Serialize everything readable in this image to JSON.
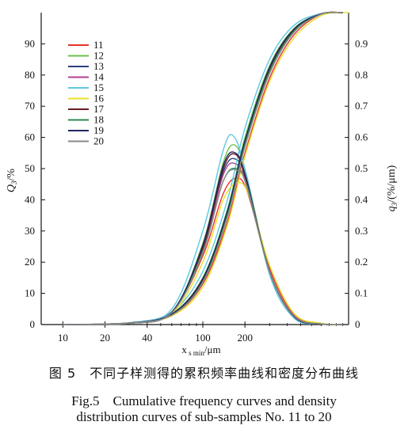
{
  "chart_data": {
    "type": "line",
    "x_scale": "log",
    "xlim": [
      7,
      1100
    ],
    "ylim_left": [
      0,
      100
    ],
    "ylim_right": [
      0,
      1.0
    ],
    "x_tick_labels": [
      "10",
      "20",
      "40",
      "100",
      "200"
    ],
    "x_tick_values": [
      10,
      20,
      40,
      100,
      200
    ],
    "y_left_tick_labels": [
      "0",
      "10",
      "20",
      "30",
      "40",
      "50",
      "60",
      "70",
      "80",
      "90"
    ],
    "y_right_tick_labels": [
      "0",
      "0.1",
      "0.2",
      "0.3",
      "0.4",
      "0.5",
      "0.6",
      "0.7",
      "0.8",
      "0.9"
    ],
    "xlabel": "x",
    "xlabel_sub": "s min",
    "xlabel_unit": "/μm",
    "ylabel_left": "Q",
    "ylabel_left_sub": "3",
    "ylabel_left_unit": "/%",
    "ylabel_right": "q",
    "ylabel_right_sub": "3",
    "ylabel_right_unit": "/(%/μm)",
    "legend_position": "top-left",
    "grid": false,
    "series": [
      {
        "name": "11",
        "color": "#e8322a",
        "cumulative": {
          "x": [
            10,
            30,
            60,
            100,
            150,
            200,
            300,
            450,
            700,
            1000
          ],
          "y": [
            0,
            0.5,
            3,
            13,
            33,
            55,
            79,
            93,
            99.5,
            100
          ]
        },
        "density": {
          "x": [
            10,
            30,
            60,
            100,
            140,
            175,
            210,
            300,
            450,
            700,
            1000
          ],
          "y": [
            0,
            0.004,
            0.04,
            0.22,
            0.42,
            0.47,
            0.42,
            0.18,
            0.03,
            0.003,
            0
          ]
        }
      },
      {
        "name": "12",
        "color": "#6cc04a",
        "cumulative": {
          "x": [
            10,
            30,
            60,
            100,
            150,
            200,
            300,
            450,
            700,
            1000
          ],
          "y": [
            0,
            0.5,
            3.5,
            15,
            37,
            60,
            83,
            95,
            99.6,
            100
          ]
        },
        "density": {
          "x": [
            10,
            30,
            60,
            100,
            140,
            170,
            205,
            300,
            450,
            700,
            1000
          ],
          "y": [
            0,
            0.004,
            0.04,
            0.26,
            0.52,
            0.575,
            0.48,
            0.17,
            0.025,
            0.002,
            0
          ]
        }
      },
      {
        "name": "13",
        "color": "#2d3f7a",
        "cumulative": {
          "x": [
            10,
            30,
            60,
            100,
            150,
            200,
            300,
            450,
            700,
            1000
          ],
          "y": [
            0,
            0.5,
            3.3,
            14.5,
            36,
            58.5,
            82,
            94.5,
            99.6,
            100
          ]
        },
        "density": {
          "x": [
            10,
            30,
            60,
            100,
            140,
            172,
            205,
            300,
            450,
            700,
            1000
          ],
          "y": [
            0,
            0.004,
            0.04,
            0.25,
            0.49,
            0.53,
            0.46,
            0.17,
            0.025,
            0.002,
            0
          ]
        }
      },
      {
        "name": "14",
        "color": "#b0408f",
        "cumulative": {
          "x": [
            10,
            30,
            60,
            100,
            150,
            200,
            300,
            450,
            700,
            1000
          ],
          "y": [
            0,
            0.5,
            3.2,
            14,
            35.5,
            58,
            81.5,
            94.3,
            99.6,
            100
          ]
        },
        "density": {
          "x": [
            10,
            30,
            60,
            100,
            140,
            172,
            205,
            300,
            450,
            700,
            1000
          ],
          "y": [
            0,
            0.004,
            0.04,
            0.24,
            0.48,
            0.515,
            0.45,
            0.17,
            0.025,
            0.002,
            0
          ]
        }
      },
      {
        "name": "15",
        "color": "#5ec8e0",
        "cumulative": {
          "x": [
            10,
            30,
            60,
            100,
            150,
            200,
            300,
            450,
            700,
            1000
          ],
          "y": [
            0,
            0.6,
            4,
            17,
            40,
            63,
            85,
            96,
            99.7,
            100
          ]
        },
        "density": {
          "x": [
            10,
            30,
            60,
            100,
            140,
            165,
            200,
            300,
            450,
            700,
            1000
          ],
          "y": [
            0,
            0.005,
            0.05,
            0.3,
            0.56,
            0.605,
            0.5,
            0.16,
            0.02,
            0.002,
            0
          ]
        }
      },
      {
        "name": "16",
        "color": "#e8e02a",
        "cumulative": {
          "x": [
            10,
            30,
            60,
            100,
            150,
            200,
            300,
            450,
            700,
            1000,
            1100
          ],
          "y": [
            0,
            0.5,
            2.8,
            12,
            32,
            54,
            78,
            92,
            99,
            100,
            100
          ]
        },
        "density": {
          "x": [
            10,
            30,
            60,
            100,
            140,
            178,
            215,
            300,
            450,
            700,
            1000
          ],
          "y": [
            0,
            0.004,
            0.035,
            0.2,
            0.4,
            0.455,
            0.41,
            0.19,
            0.035,
            0.004,
            0
          ]
        }
      },
      {
        "name": "17",
        "color": "#6a1a24",
        "cumulative": {
          "x": [
            10,
            30,
            60,
            100,
            150,
            200,
            300,
            450,
            700,
            1000
          ],
          "y": [
            0,
            0.5,
            3.2,
            14.2,
            35.8,
            58.2,
            81.6,
            94.4,
            99.6,
            100
          ]
        },
        "density": {
          "x": [
            10,
            30,
            60,
            100,
            140,
            172,
            205,
            300,
            450,
            700,
            1000
          ],
          "y": [
            0,
            0.004,
            0.04,
            0.245,
            0.5,
            0.545,
            0.46,
            0.17,
            0.025,
            0.002,
            0
          ]
        }
      },
      {
        "name": "18",
        "color": "#2a8a50",
        "cumulative": {
          "x": [
            10,
            30,
            60,
            100,
            150,
            200,
            300,
            450,
            700,
            1000
          ],
          "y": [
            0,
            0.5,
            3.1,
            13.8,
            35.2,
            57.8,
            81.2,
            94.2,
            99.6,
            100
          ]
        },
        "density": {
          "x": [
            10,
            30,
            60,
            100,
            140,
            174,
            207,
            300,
            450,
            700,
            1000
          ],
          "y": [
            0,
            0.004,
            0.04,
            0.235,
            0.46,
            0.5,
            0.44,
            0.17,
            0.026,
            0.002,
            0
          ]
        }
      },
      {
        "name": "19",
        "color": "#1f2660",
        "cumulative": {
          "x": [
            10,
            30,
            60,
            100,
            150,
            200,
            300,
            450,
            700,
            1000
          ],
          "y": [
            0,
            0.5,
            3.4,
            14.8,
            36.5,
            59,
            82.5,
            94.8,
            99.6,
            100
          ]
        },
        "density": {
          "x": [
            10,
            30,
            60,
            100,
            140,
            171,
            204,
            300,
            450,
            700,
            1000
          ],
          "y": [
            0,
            0.004,
            0.04,
            0.255,
            0.51,
            0.55,
            0.47,
            0.17,
            0.025,
            0.002,
            0
          ]
        }
      },
      {
        "name": "20",
        "color": "#8a8a8a",
        "cumulative": {
          "x": [
            10,
            30,
            60,
            100,
            150,
            200,
            300,
            450,
            700,
            1000
          ],
          "y": [
            0,
            0.5,
            3,
            13.5,
            34.5,
            57,
            80.5,
            93.8,
            99.5,
            100
          ]
        },
        "density": {
          "x": [
            10,
            30,
            60,
            100,
            140,
            175,
            208,
            300,
            450,
            700,
            1000
          ],
          "y": [
            0,
            0.004,
            0.038,
            0.23,
            0.46,
            0.495,
            0.44,
            0.17,
            0.027,
            0.002,
            0
          ]
        }
      }
    ]
  },
  "caption": {
    "zh": "图 5　不同子样测得的累积频率曲线和密度分布曲线",
    "en_line1": "Fig.5　Cumulative frequency curves and density",
    "en_line2": "distribution curves of sub-samples No. 11 to 20"
  }
}
